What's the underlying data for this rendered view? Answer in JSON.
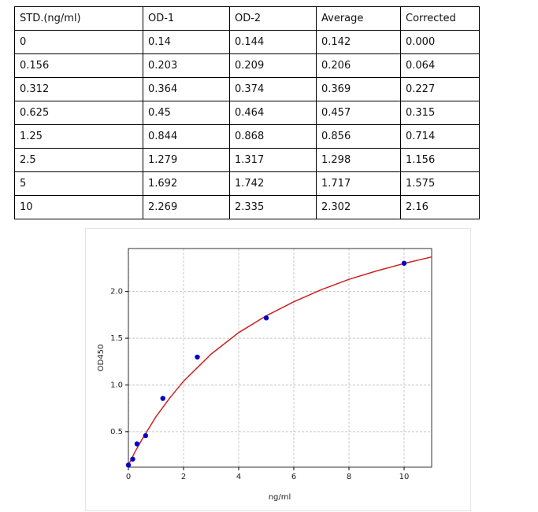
{
  "table": {
    "header": [
      "STD.(ng/ml)",
      "OD-1",
      "OD-2",
      "Average",
      "Corrected"
    ],
    "rows": [
      [
        "0",
        "0.14",
        "0.144",
        "0.142",
        "0.000"
      ],
      [
        "0.156",
        "0.203",
        "0.209",
        "0.206",
        "0.064"
      ],
      [
        "0.312",
        "0.364",
        "0.374",
        "0.369",
        "0.227"
      ],
      [
        "0.625",
        "0.45",
        "0.464",
        "0.457",
        "0.315"
      ],
      [
        "1.25",
        "0.844",
        "0.868",
        "0.856",
        "0.714"
      ],
      [
        "2.5",
        "1.279",
        "1.317",
        "1.298",
        "1.156"
      ],
      [
        "5",
        "1.692",
        "1.742",
        "1.717",
        "1.575"
      ],
      [
        "10",
        "2.269",
        "2.335",
        "2.302",
        "2.16"
      ]
    ]
  },
  "chart_data": {
    "type": "scatter",
    "x_label": "ng/ml",
    "y_label": "OD450",
    "series": [
      {
        "kind": "points",
        "color": "#0000cc",
        "x": [
          0,
          0.156,
          0.312,
          0.625,
          1.25,
          2.5,
          5,
          10
        ],
        "values": [
          0.142,
          0.206,
          0.369,
          0.457,
          0.856,
          1.298,
          1.717,
          2.302
        ]
      },
      {
        "kind": "line",
        "color": "#cc2222",
        "x": [
          0,
          0.25,
          0.5,
          1,
          1.5,
          2,
          3,
          4,
          5,
          6,
          7,
          8,
          9,
          10,
          11
        ],
        "values": [
          0.14,
          0.29,
          0.42,
          0.66,
          0.86,
          1.04,
          1.33,
          1.56,
          1.74,
          1.89,
          2.02,
          2.13,
          2.22,
          2.3,
          2.37
        ]
      }
    ],
    "xlim": [
      0,
      11
    ],
    "ylim": [
      0.12,
      2.46
    ],
    "xticks": [
      0,
      2,
      4,
      6,
      8,
      10
    ],
    "yticks": [
      0.5,
      {
        "value": 1.0,
        "label": "1.0"
      },
      1.5,
      {
        "value": 2.0,
        "label": "2.0"
      }
    ],
    "grid": true
  }
}
